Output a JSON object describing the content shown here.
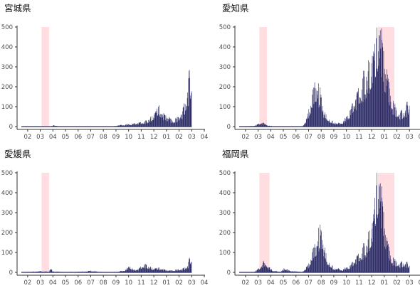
{
  "figure": {
    "x_tick_labels": [
      "02",
      "03",
      "04",
      "05",
      "06",
      "07",
      "08",
      "09",
      "10",
      "11",
      "12",
      "01",
      "02",
      "03",
      "04"
    ],
    "y_tick_labels": [
      "0",
      "100",
      "200",
      "300",
      "400",
      "500"
    ],
    "bar_color": "#2b2b66",
    "highlight_color": "#ffdde0",
    "axis_color": "#333333"
  },
  "chart_data": [
    {
      "type": "bar",
      "title": "宮城県",
      "x_unit": "month index (0 = start of Feb, 1 = start of Mar, ...)",
      "ylim": [
        0,
        500
      ],
      "xlim": [
        0,
        14.5
      ],
      "shaded_periods": [
        [
          1.6,
          2.2
        ]
      ],
      "profile": [
        [
          0,
          0
        ],
        [
          2.3,
          0
        ],
        [
          2.6,
          5
        ],
        [
          2.9,
          1
        ],
        [
          4.0,
          0
        ],
        [
          7.2,
          0
        ],
        [
          7.6,
          4
        ],
        [
          8.4,
          8
        ],
        [
          9.2,
          12
        ],
        [
          9.9,
          20
        ],
        [
          10.3,
          35
        ],
        [
          10.6,
          55
        ],
        [
          10.9,
          80
        ],
        [
          11.2,
          45
        ],
        [
          11.7,
          30
        ],
        [
          12.0,
          20
        ],
        [
          12.4,
          30
        ],
        [
          12.8,
          55
        ],
        [
          13.1,
          110
        ],
        [
          13.4,
          200
        ],
        [
          13.5,
          150
        ]
      ]
    },
    {
      "type": "bar",
      "title": "愛知県",
      "x_unit": "month index (0 = start of Feb, 1 = start of Mar, ...)",
      "ylim": [
        0,
        500
      ],
      "xlim": [
        0,
        14.5
      ],
      "shaded_periods": [
        [
          1.6,
          2.2
        ],
        [
          11.0,
          12.3
        ]
      ],
      "profile": [
        [
          0,
          0
        ],
        [
          1.2,
          3
        ],
        [
          1.8,
          15
        ],
        [
          2.3,
          3
        ],
        [
          3.2,
          0
        ],
        [
          5.0,
          0
        ],
        [
          5.4,
          30
        ],
        [
          5.8,
          110
        ],
        [
          6.1,
          180
        ],
        [
          6.3,
          140
        ],
        [
          6.7,
          60
        ],
        [
          7.2,
          25
        ],
        [
          7.8,
          10
        ],
        [
          8.3,
          20
        ],
        [
          8.8,
          60
        ],
        [
          9.3,
          110
        ],
        [
          9.8,
          170
        ],
        [
          10.3,
          230
        ],
        [
          10.8,
          320
        ],
        [
          11.1,
          430
        ],
        [
          11.3,
          300
        ],
        [
          11.7,
          180
        ],
        [
          12.2,
          80
        ],
        [
          12.6,
          45
        ],
        [
          13.1,
          55
        ],
        [
          13.5,
          95
        ]
      ]
    },
    {
      "type": "bar",
      "title": "愛媛県",
      "x_unit": "month index (0 = start of Feb, 1 = start of Mar, ...)",
      "ylim": [
        0,
        500
      ],
      "xlim": [
        0,
        14.5
      ],
      "shaded_periods": [
        [
          1.6,
          2.2
        ]
      ],
      "profile": [
        [
          0,
          0
        ],
        [
          1.5,
          4
        ],
        [
          2.2,
          2
        ],
        [
          2.3,
          15
        ],
        [
          2.5,
          3
        ],
        [
          3.5,
          1
        ],
        [
          4.5,
          2
        ],
        [
          5.5,
          5
        ],
        [
          6.5,
          1
        ],
        [
          7.7,
          2
        ],
        [
          8.3,
          10
        ],
        [
          8.6,
          25
        ],
        [
          8.9,
          8
        ],
        [
          9.3,
          12
        ],
        [
          9.7,
          30
        ],
        [
          10.1,
          22
        ],
        [
          10.5,
          15
        ],
        [
          10.9,
          18
        ],
        [
          11.3,
          10
        ],
        [
          11.7,
          6
        ],
        [
          12.2,
          8
        ],
        [
          12.8,
          12
        ],
        [
          13.2,
          25
        ],
        [
          13.4,
          60
        ],
        [
          13.5,
          45
        ]
      ]
    },
    {
      "type": "bar",
      "title": "福岡県",
      "x_unit": "month index (0 = start of Feb, 1 = start of Mar, ...)",
      "ylim": [
        0,
        500
      ],
      "xlim": [
        0,
        14.5
      ],
      "shaded_periods": [
        [
          1.6,
          2.4
        ],
        [
          11.0,
          12.3
        ]
      ],
      "profile": [
        [
          0,
          0
        ],
        [
          1.2,
          2
        ],
        [
          1.6,
          15
        ],
        [
          1.9,
          35
        ],
        [
          2.3,
          20
        ],
        [
          2.7,
          5
        ],
        [
          3.3,
          2
        ],
        [
          3.6,
          15
        ],
        [
          4.0,
          5
        ],
        [
          5.0,
          2
        ],
        [
          5.5,
          25
        ],
        [
          6.0,
          100
        ],
        [
          6.3,
          150
        ],
        [
          6.6,
          130
        ],
        [
          7.0,
          50
        ],
        [
          7.5,
          15
        ],
        [
          8.2,
          10
        ],
        [
          8.8,
          25
        ],
        [
          9.5,
          65
        ],
        [
          10.1,
          110
        ],
        [
          10.6,
          200
        ],
        [
          10.9,
          360
        ],
        [
          11.1,
          410
        ],
        [
          11.3,
          260
        ],
        [
          11.7,
          110
        ],
        [
          12.1,
          50
        ],
        [
          12.6,
          30
        ],
        [
          13.0,
          35
        ],
        [
          13.5,
          30
        ]
      ]
    }
  ]
}
